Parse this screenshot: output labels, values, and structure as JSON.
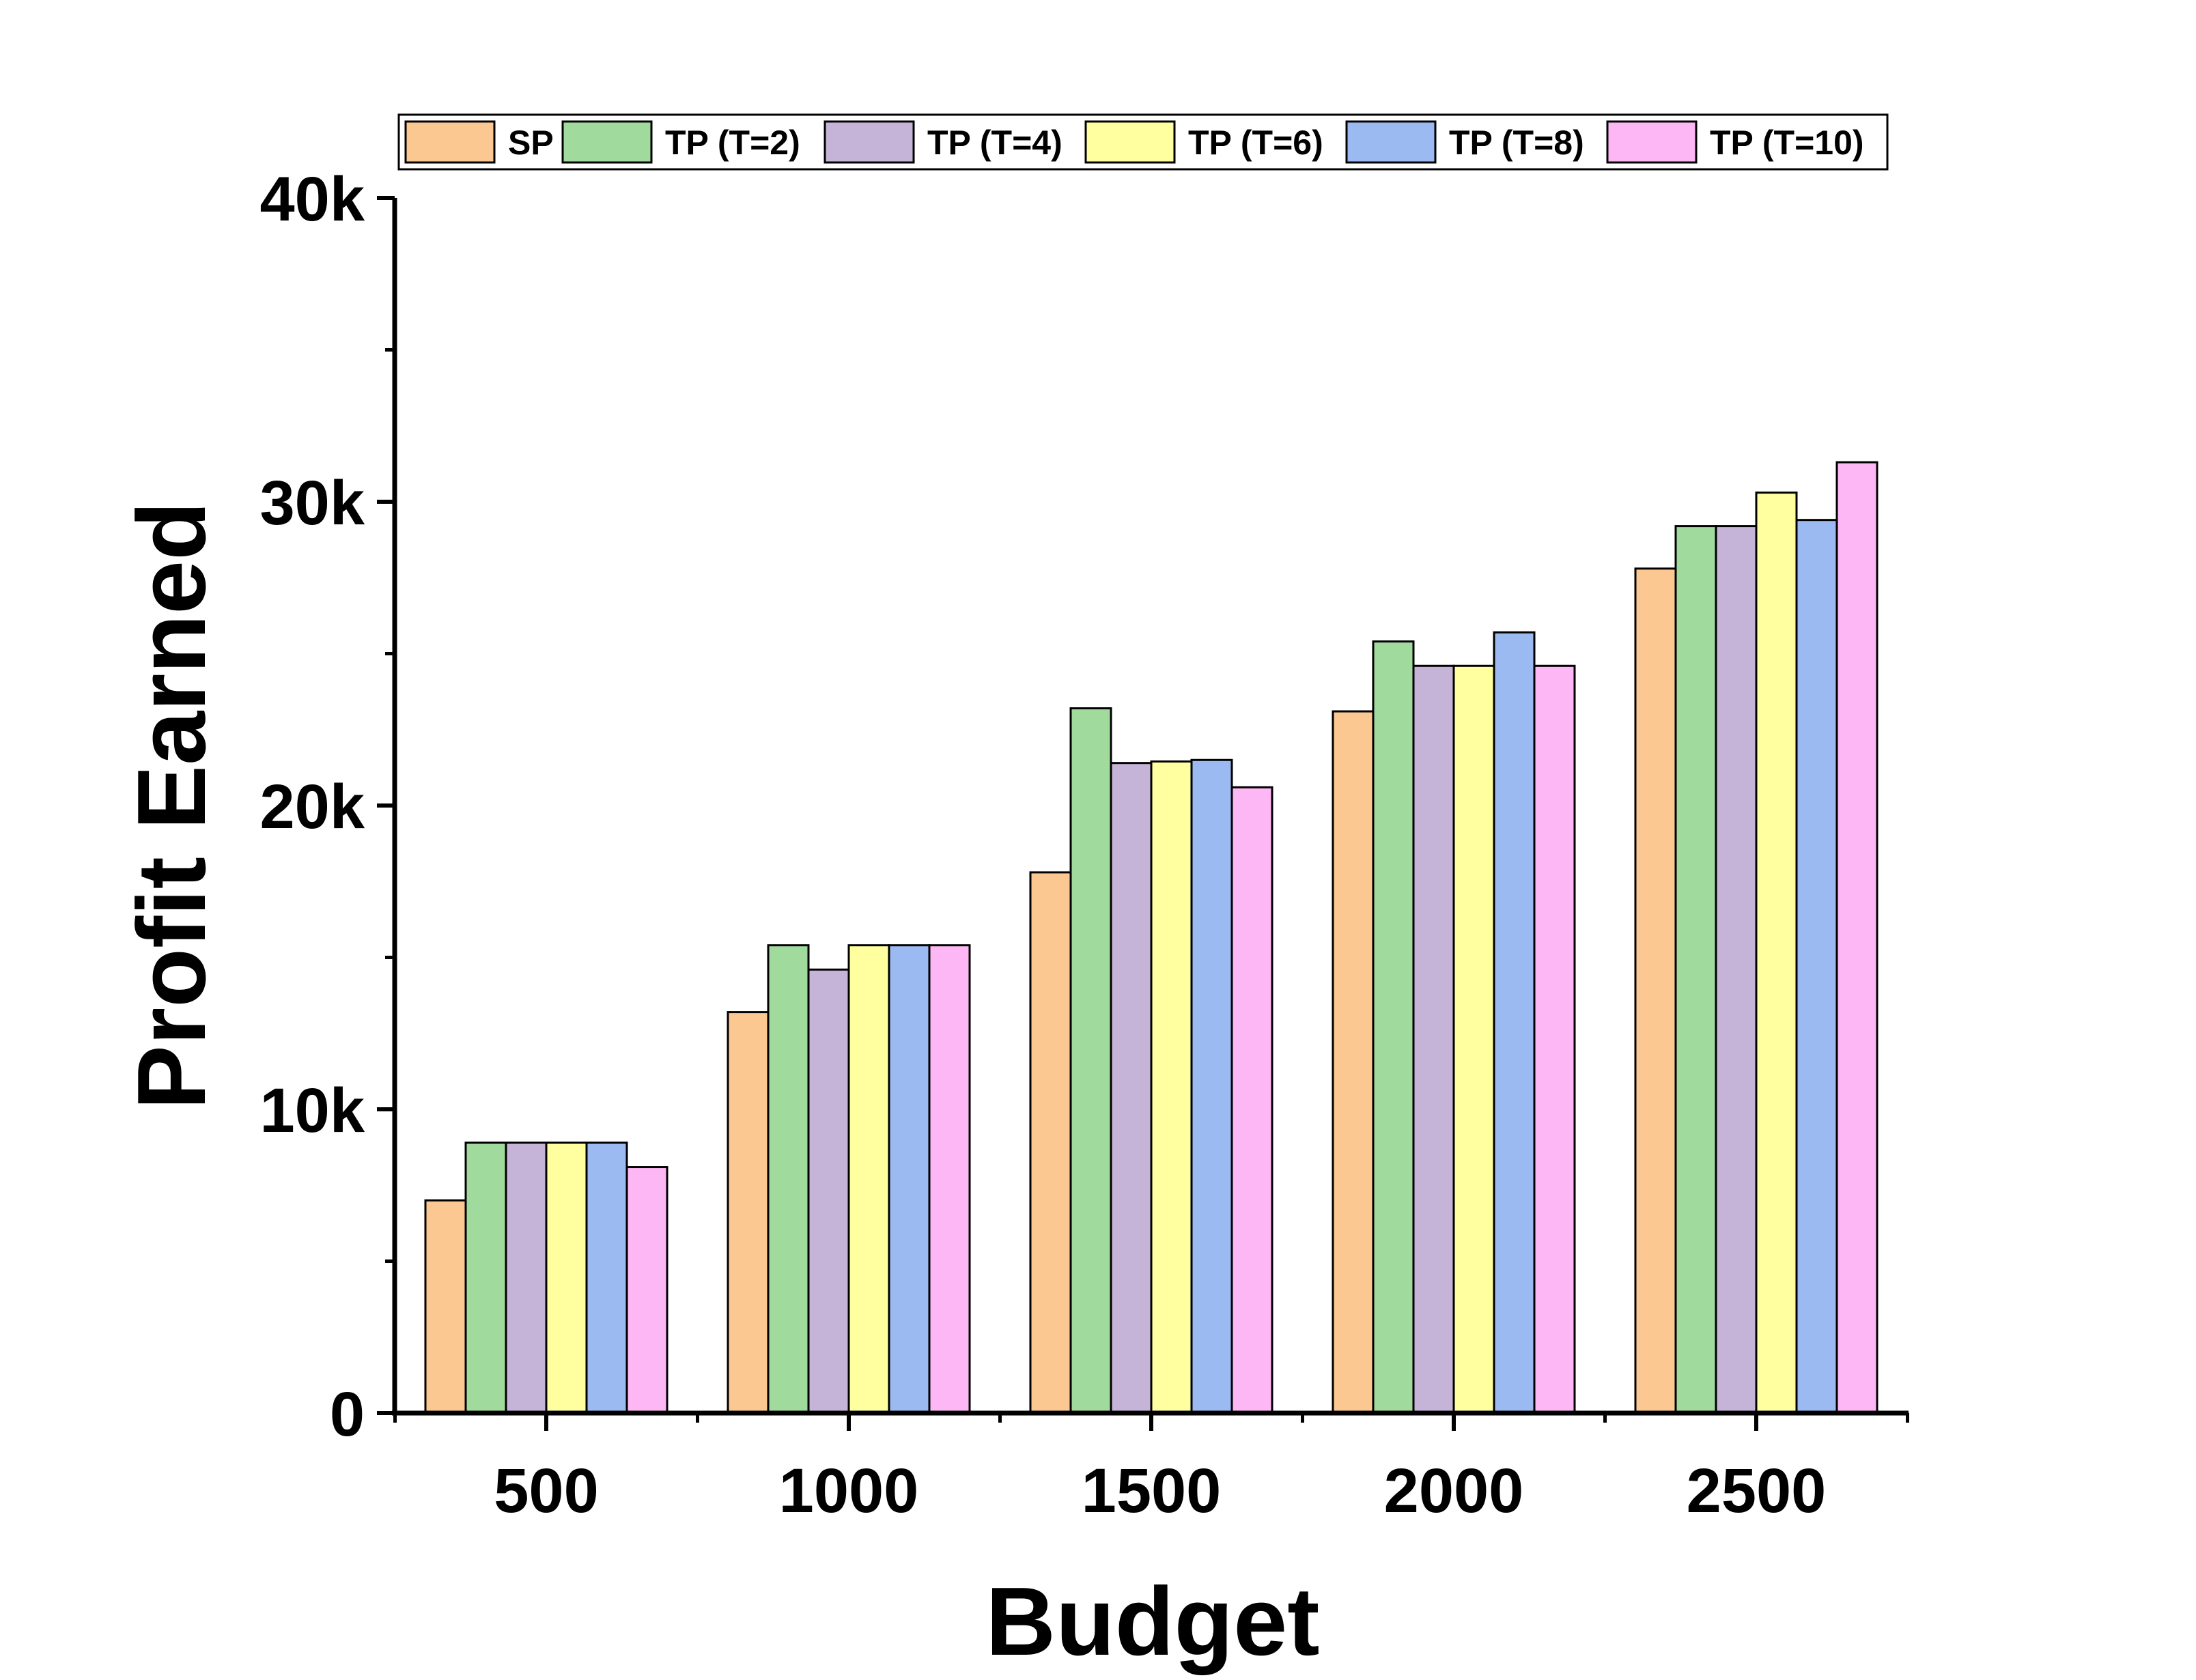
{
  "chart_data": {
    "type": "bar",
    "title": "",
    "xlabel": "Budget",
    "ylabel": "Profit Earned",
    "categories": [
      "500",
      "1000",
      "1500",
      "2000",
      "2500"
    ],
    "ylim": [
      0,
      40000
    ],
    "yticks": [
      0,
      10000,
      20000,
      30000,
      40000
    ],
    "ytick_labels": [
      "0",
      "10k",
      "20k",
      "30k",
      "40k"
    ],
    "grid": false,
    "legend_position": "top",
    "series": [
      {
        "name": "SP",
        "color": "#FBC892",
        "values": [
          7000,
          13200,
          17800,
          23100,
          27800
        ]
      },
      {
        "name": "TP (T=2)",
        "color": "#A0DA9C",
        "values": [
          8900,
          15400,
          23200,
          25400,
          29200
        ]
      },
      {
        "name": "TP (T=4)",
        "color": "#C5B4D8",
        "values": [
          8900,
          14600,
          21400,
          24600,
          29200
        ]
      },
      {
        "name": "TP (T=6)",
        "color": "#FFFFA0",
        "values": [
          8900,
          15400,
          21450,
          24600,
          30300
        ]
      },
      {
        "name": "TP (T=8)",
        "color": "#9BBAF2",
        "values": [
          8900,
          15400,
          21500,
          25700,
          29400
        ]
      },
      {
        "name": "TP (T=10)",
        "color": "#FDB7F4",
        "values": [
          8100,
          15400,
          20600,
          24600,
          31300
        ]
      }
    ]
  }
}
